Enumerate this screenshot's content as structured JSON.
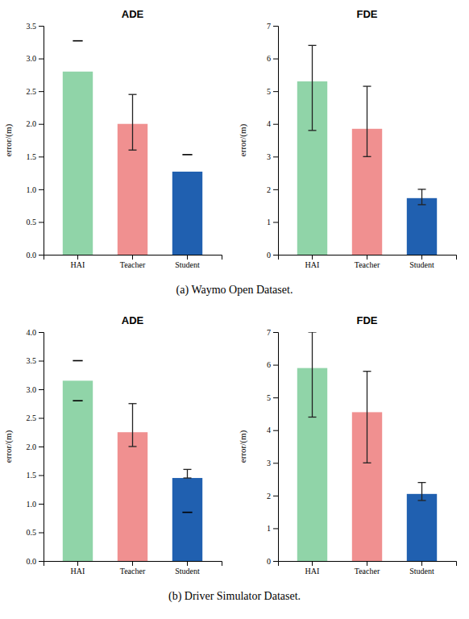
{
  "chart_data": [
    {
      "type": "bar",
      "title": "ADE",
      "y_label": "error/(m)",
      "categories": [
        "HAI",
        "Teacher",
        "Student"
      ],
      "values": [
        2.8,
        2.0,
        1.27
      ],
      "errors_up": [
        0.0,
        0.45,
        0.0
      ],
      "errors_low": [
        0.0,
        0.4,
        0.0
      ],
      "colors": [
        "#90d4a8",
        "#f09090",
        "#2060b0"
      ],
      "marks": [
        {
          "category": "HAI",
          "y": 3.27
        },
        {
          "category": "Student",
          "y": 1.53
        }
      ],
      "ylim": [
        0,
        3.5
      ],
      "yticks": [
        {
          "value": 0,
          "label": "0.0"
        },
        0.5,
        {
          "value": 1.0,
          "label": "1.0"
        },
        1.5,
        {
          "value": 2.0,
          "label": "2.0"
        },
        2.5,
        {
          "value": 3.0,
          "label": "3.0"
        },
        3.5
      ],
      "grid": false,
      "annotations": [
        "(a) Waymo Open Dataset."
      ]
    },
    {
      "type": "bar",
      "title": "FDE",
      "y_label": "error/(m)",
      "categories": [
        "HAI",
        "Teacher",
        "Student"
      ],
      "values": [
        5.3,
        3.85,
        1.73
      ],
      "errors_up": [
        1.1,
        1.3,
        0.27
      ],
      "errors_low": [
        1.5,
        0.85,
        0.2
      ],
      "colors": [
        "#90d4a8",
        "#f09090",
        "#2060b0"
      ],
      "ylim": [
        0,
        7
      ],
      "yticks": [
        0,
        1,
        2,
        3,
        4,
        5,
        6,
        7
      ],
      "grid": false
    },
    {
      "type": "bar",
      "title": "ADE",
      "y_label": "error/(m)",
      "categories": [
        "HAI",
        "Teacher",
        "Student"
      ],
      "values": [
        3.15,
        2.25,
        1.45
      ],
      "errors_up": [
        0.0,
        0.5,
        0.15
      ],
      "errors_low": [
        0.0,
        0.25,
        0.0
      ],
      "colors": [
        "#90d4a8",
        "#f09090",
        "#2060b0"
      ],
      "marks": [
        {
          "category": "HAI",
          "y": 3.5
        },
        {
          "category": "HAI",
          "y": 2.8
        },
        {
          "category": "Student",
          "y": 0.85
        }
      ],
      "ylim": [
        0,
        4
      ],
      "yticks": [
        {
          "value": 0,
          "label": "0.0"
        },
        0.5,
        {
          "value": 1.0,
          "label": "1.0"
        },
        1.5,
        {
          "value": 2.0,
          "label": "2.0"
        },
        2.5,
        {
          "value": 3.0,
          "label": "3.0"
        },
        3.5,
        {
          "value": 4.0,
          "label": "4.0"
        }
      ],
      "grid": false,
      "annotations": [
        "(b) Driver Simulator Dataset."
      ]
    },
    {
      "type": "bar",
      "title": "FDE",
      "y_label": "error/(m)",
      "categories": [
        "HAI",
        "Teacher",
        "Student"
      ],
      "values": [
        5.9,
        4.55,
        2.05
      ],
      "errors_up": [
        1.1,
        1.25,
        0.35
      ],
      "errors_low": [
        1.5,
        1.55,
        0.2
      ],
      "colors": [
        "#90d4a8",
        "#f09090",
        "#2060b0"
      ],
      "ylim": [
        0,
        7
      ],
      "yticks": [
        0,
        1,
        2,
        3,
        4,
        5,
        6,
        7
      ],
      "grid": false
    }
  ]
}
